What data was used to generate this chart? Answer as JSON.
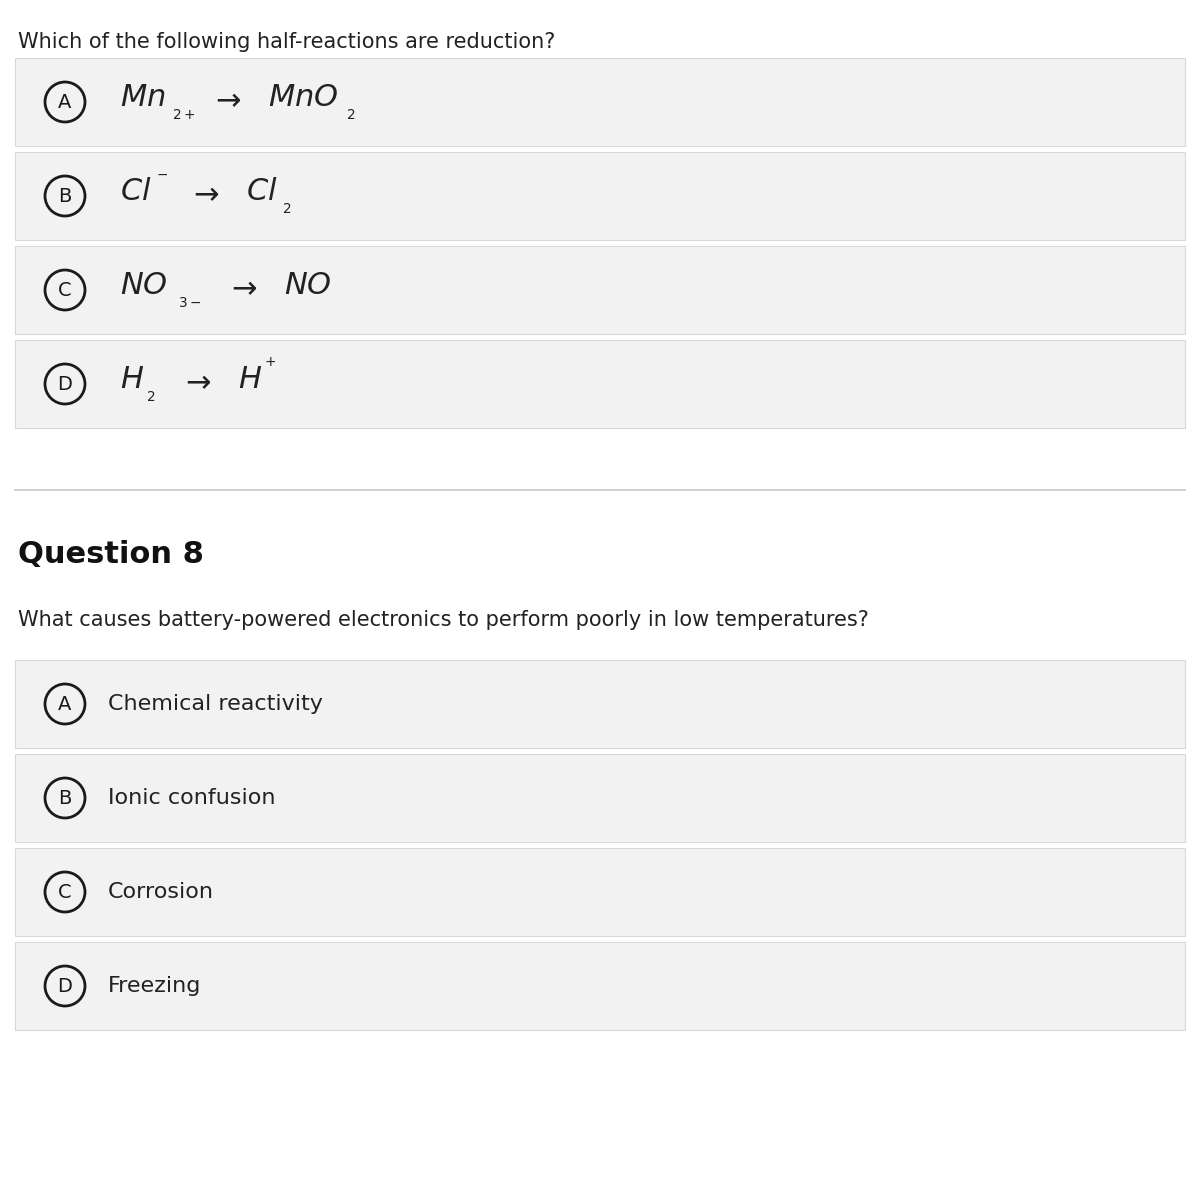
{
  "bg_color": "#ffffff",
  "option_bg_color": "#f2f2f2",
  "option_border_color": "#d8d8d8",
  "q1_question": "Which of the following half-reactions are reduction?",
  "q2_title": "Question 8",
  "q2_question": "What causes battery-powered electronics to perform poorly in low temperatures?",
  "q2_options": [
    {
      "label": "A",
      "text": "Chemical reactivity"
    },
    {
      "label": "B",
      "text": "Ionic confusion"
    },
    {
      "label": "C",
      "text": "Corrosion"
    },
    {
      "label": "D",
      "text": "Freezing"
    }
  ],
  "circle_color": "#1a1a1a",
  "text_color": "#222222",
  "divider_color": "#c8c8c8",
  "q1_question_fontsize": 15,
  "q2_title_fontsize": 22,
  "q2_question_fontsize": 15,
  "q2_option_fontsize": 16,
  "formula_fontsize": 22,
  "sub_fontsize": 14,
  "circle_fontsize": 14
}
